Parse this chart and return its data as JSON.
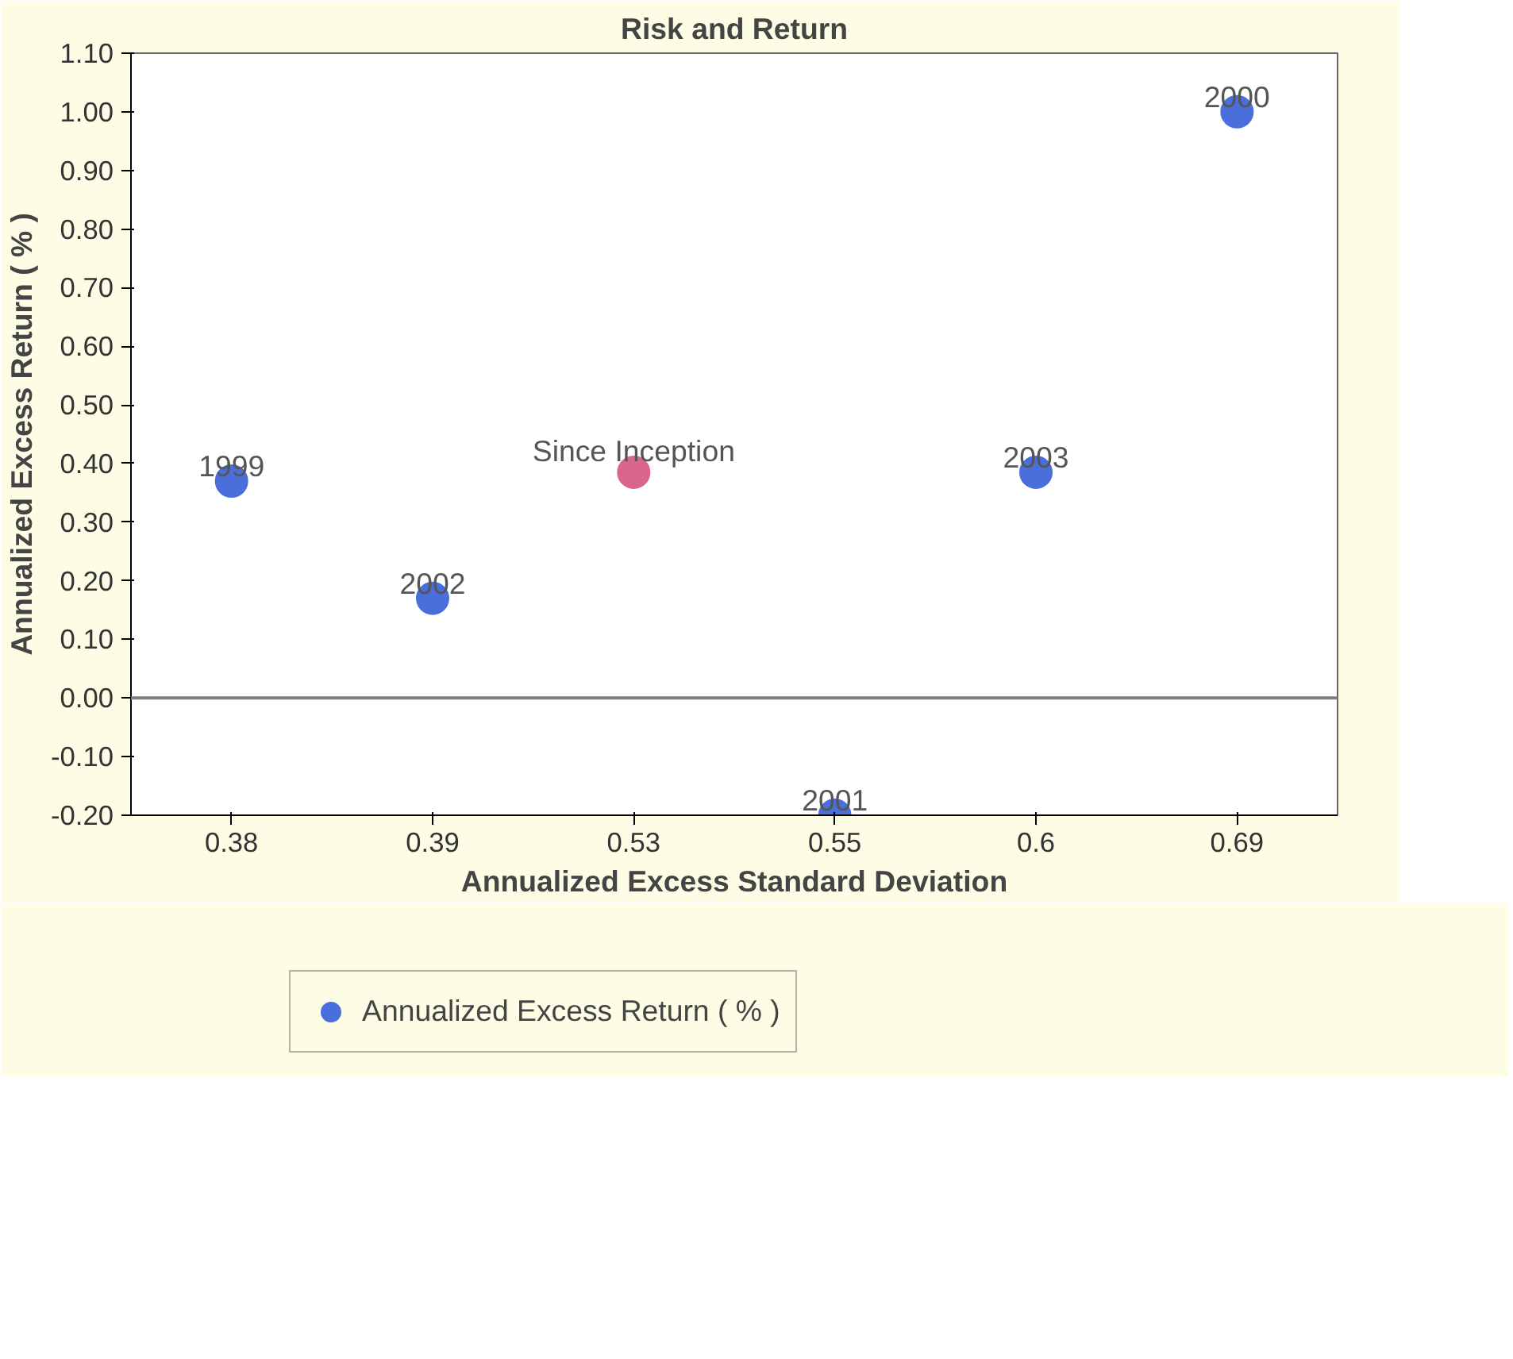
{
  "chart_data": {
    "type": "scatter",
    "title": "Risk and Return",
    "xlabel": "Annualized Excess Standard Deviation",
    "ylabel": "Annualized Excess Return ( % )",
    "categories": [
      "0.38",
      "0.39",
      "0.53",
      "0.55",
      "0.6",
      "0.69"
    ],
    "series": [
      {
        "name": "Annualized Excess Return ( % )",
        "color": "#4a6fdc",
        "colors": [
          "#4a6fdc",
          "#4a6fdc",
          "#d9668a",
          "#4a6fdc",
          "#4a6fdc",
          "#4a6fdc"
        ],
        "values": [
          0.37,
          0.17,
          0.385,
          -0.2,
          0.385,
          1.0
        ]
      }
    ],
    "ylim": [
      -0.2,
      1.1
    ],
    "yticks": [
      {
        "value": -0.2,
        "label": "-0.20"
      },
      {
        "value": -0.1,
        "label": "-0.10"
      },
      {
        "value": 0,
        "label": "0.00"
      },
      {
        "value": 0.1,
        "label": "0.10"
      },
      {
        "value": 0.2,
        "label": "0.20"
      },
      {
        "value": 0.3,
        "label": "0.30"
      },
      {
        "value": 0.4,
        "label": "0.40"
      },
      {
        "value": 0.5,
        "label": "0.50"
      },
      {
        "value": 0.6,
        "label": "0.60"
      },
      {
        "value": 0.7,
        "label": "0.70"
      },
      {
        "value": 0.8,
        "label": "0.80"
      },
      {
        "value": 0.9,
        "label": "0.90"
      },
      {
        "value": 1.0,
        "label": "1.00"
      },
      {
        "value": 1.1,
        "label": "1.10"
      }
    ],
    "annotations": [
      {
        "text": "1999",
        "x": "0.38",
        "y": 0.37
      },
      {
        "text": "2002",
        "x": "0.39",
        "y": 0.17
      },
      {
        "text": "Since Inception",
        "x": "0.53",
        "y": 0.385
      },
      {
        "text": "2001",
        "x": "0.55",
        "y": -0.2
      },
      {
        "text": "2003",
        "x": "0.6",
        "y": 0.385
      },
      {
        "text": "2000",
        "x": "0.69",
        "y": 1.0
      }
    ],
    "ref_lines": [
      {
        "axis": "y",
        "value": 0,
        "color": "#808080"
      }
    ],
    "marker": "circle",
    "grid": false,
    "legend": "bottom left"
  }
}
